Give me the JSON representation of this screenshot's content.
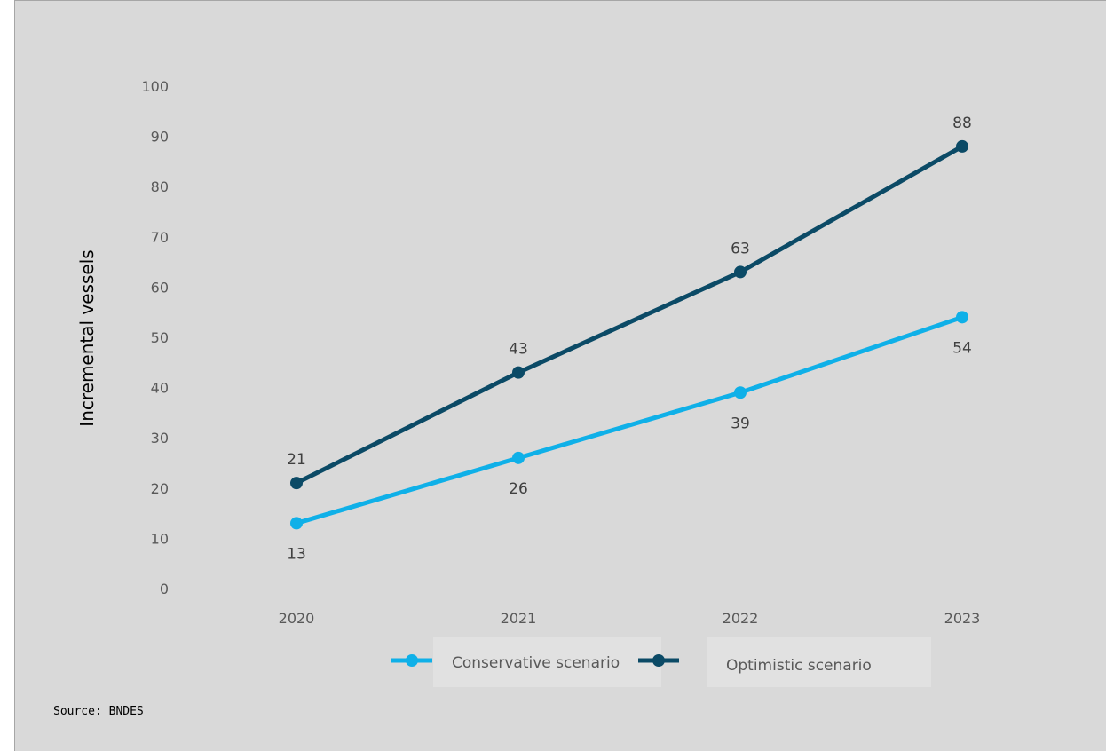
{
  "chart_data": {
    "type": "line",
    "categories": [
      "2020",
      "2021",
      "2022",
      "2023"
    ],
    "series": [
      {
        "name": "Conservative scenario",
        "values": [
          13,
          26,
          39,
          54
        ],
        "color": "#0fb0e8",
        "label_position": "below"
      },
      {
        "name": "Optimistic scenario",
        "values": [
          21,
          43,
          63,
          88
        ],
        "color": "#0b4a66",
        "label_position": "above"
      }
    ],
    "title": "",
    "xlabel": "",
    "ylabel": "Incremental vessels",
    "ylim": [
      0,
      100
    ],
    "yticks": [
      0,
      10,
      20,
      30,
      40,
      50,
      60,
      70,
      80,
      90,
      100
    ],
    "grid": false,
    "legend_position": "bottom",
    "background": "#d9d9d9"
  },
  "source": "Source: BNDES"
}
